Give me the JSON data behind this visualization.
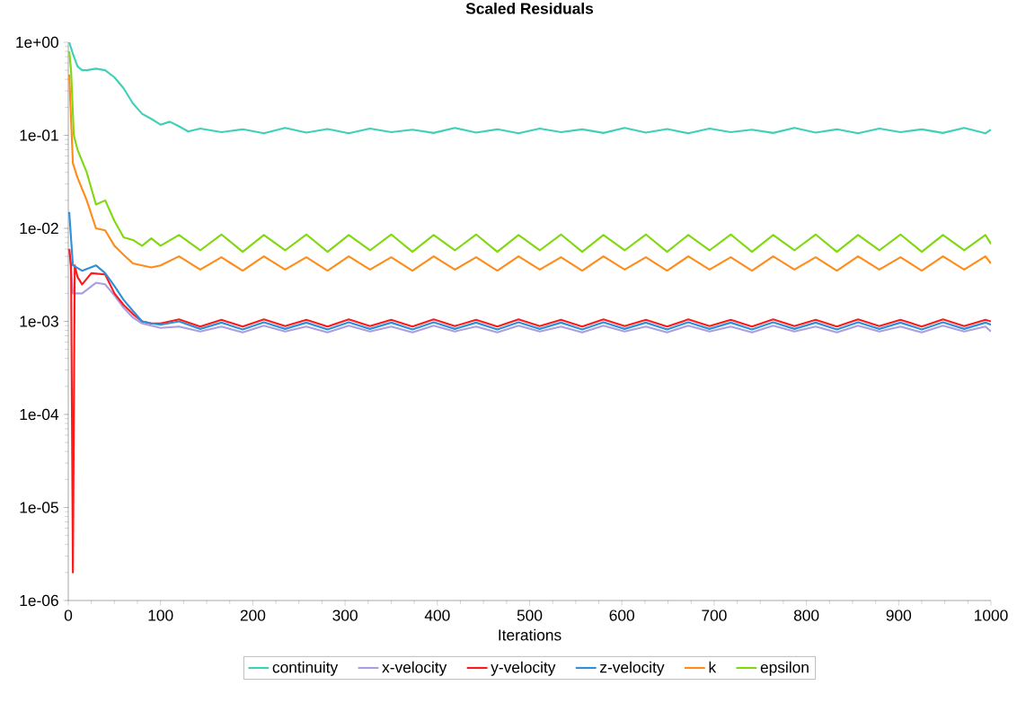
{
  "chart_data": {
    "type": "line",
    "title": "Scaled Residuals",
    "xlabel": "Iterations",
    "log": "y",
    "legend": "bottom",
    "xlim": [
      0,
      1000
    ],
    "ylim": [
      1e-06,
      1
    ],
    "xticks": [
      0,
      100,
      200,
      300,
      400,
      500,
      600,
      700,
      800,
      900,
      1000
    ],
    "yticks": [
      {
        "value": 1e-06,
        "label": "1e-06"
      },
      {
        "value": 1e-05,
        "label": "1e-05"
      },
      {
        "value": 0.0001,
        "label": "1e-04"
      },
      {
        "value": 0.001,
        "label": "1e-03"
      },
      {
        "value": 0.01,
        "label": "1e-02"
      },
      {
        "value": 0.1,
        "label": "1e-01"
      },
      {
        "value": 1,
        "label": "1e+00"
      }
    ],
    "series": [
      {
        "name": "continuity",
        "color": "#40d0b8",
        "x": [
          1,
          5,
          10,
          15,
          20,
          30,
          40,
          50,
          60,
          70,
          80,
          90,
          100,
          110,
          120,
          130,
          143,
          166,
          189,
          212,
          235,
          258,
          281,
          304,
          327,
          350,
          373,
          396,
          419,
          442,
          465,
          488,
          511,
          534,
          557,
          580,
          603,
          626,
          649,
          672,
          695,
          718,
          741,
          764,
          787,
          810,
          833,
          856,
          879,
          902,
          925,
          948,
          971,
          994,
          1000
        ],
        "values": [
          1,
          0.75,
          0.55,
          0.5,
          0.5,
          0.52,
          0.5,
          0.42,
          0.32,
          0.22,
          0.17,
          0.15,
          0.13,
          0.14,
          0.125,
          0.11,
          0.118,
          0.108,
          0.116,
          0.105,
          0.12,
          0.107,
          0.117,
          0.105,
          0.118,
          0.108,
          0.115,
          0.106,
          0.12,
          0.107,
          0.116,
          0.105,
          0.118,
          0.108,
          0.116,
          0.106,
          0.12,
          0.107,
          0.117,
          0.105,
          0.118,
          0.108,
          0.115,
          0.106,
          0.12,
          0.107,
          0.116,
          0.105,
          0.118,
          0.108,
          0.116,
          0.106,
          0.12,
          0.105,
          0.115
        ]
      },
      {
        "name": "x-velocity",
        "color": "#a89ee0",
        "x": [
          1,
          5,
          15,
          30,
          40,
          50,
          60,
          70,
          80,
          90,
          100,
          120,
          143,
          166,
          189,
          212,
          235,
          258,
          281,
          304,
          327,
          350,
          373,
          396,
          419,
          442,
          465,
          488,
          511,
          534,
          557,
          580,
          603,
          626,
          649,
          672,
          695,
          718,
          741,
          764,
          787,
          810,
          833,
          856,
          879,
          902,
          925,
          948,
          971,
          994,
          1000
        ],
        "values": [
          0.006,
          0.002,
          0.002,
          0.0026,
          0.0025,
          0.0019,
          0.0014,
          0.0011,
          0.00095,
          0.0009,
          0.00085,
          0.00088,
          0.00078,
          0.00088,
          0.00076,
          0.0009,
          0.00078,
          0.00088,
          0.00076,
          0.0009,
          0.00078,
          0.00088,
          0.00076,
          0.0009,
          0.00078,
          0.00088,
          0.00076,
          0.0009,
          0.00078,
          0.00088,
          0.00076,
          0.0009,
          0.00078,
          0.00088,
          0.00076,
          0.0009,
          0.00078,
          0.00088,
          0.00076,
          0.0009,
          0.00078,
          0.00088,
          0.00076,
          0.0009,
          0.00078,
          0.00088,
          0.00076,
          0.0009,
          0.00078,
          0.00088,
          0.00078
        ]
      },
      {
        "name": "y-velocity",
        "color": "#ff1a1a",
        "x": [
          1,
          3,
          5,
          7,
          10,
          15,
          25,
          40,
          50,
          60,
          70,
          80,
          90,
          100,
          120,
          143,
          166,
          189,
          212,
          235,
          258,
          281,
          304,
          327,
          350,
          373,
          396,
          419,
          442,
          465,
          488,
          511,
          534,
          557,
          580,
          603,
          626,
          649,
          672,
          695,
          718,
          741,
          764,
          787,
          810,
          833,
          856,
          879,
          902,
          925,
          948,
          971,
          994,
          1000
        ],
        "values": [
          0.006,
          0.004,
          2e-06,
          0.004,
          0.003,
          0.0025,
          0.0033,
          0.0032,
          0.002,
          0.0015,
          0.0012,
          0.001,
          0.00095,
          0.00095,
          0.00105,
          0.00088,
          0.00104,
          0.00088,
          0.00105,
          0.00089,
          0.00104,
          0.00088,
          0.00105,
          0.00089,
          0.00104,
          0.00088,
          0.00105,
          0.00089,
          0.00104,
          0.00088,
          0.00105,
          0.00089,
          0.00104,
          0.00088,
          0.00105,
          0.00089,
          0.00104,
          0.00088,
          0.00105,
          0.00089,
          0.00104,
          0.00088,
          0.00105,
          0.00089,
          0.00104,
          0.00088,
          0.00105,
          0.00089,
          0.00104,
          0.00088,
          0.00105,
          0.00089,
          0.00104,
          0.001
        ]
      },
      {
        "name": "z-velocity",
        "color": "#2f8fd8",
        "x": [
          1,
          5,
          15,
          30,
          40,
          50,
          60,
          70,
          80,
          90,
          100,
          120,
          143,
          166,
          189,
          212,
          235,
          258,
          281,
          304,
          327,
          350,
          373,
          396,
          419,
          442,
          465,
          488,
          511,
          534,
          557,
          580,
          603,
          626,
          649,
          672,
          695,
          718,
          741,
          764,
          787,
          810,
          833,
          856,
          879,
          902,
          925,
          948,
          971,
          994,
          1000
        ],
        "values": [
          0.015,
          0.004,
          0.0035,
          0.004,
          0.0033,
          0.0024,
          0.0017,
          0.0013,
          0.001,
          0.00095,
          0.00092,
          0.001,
          0.00083,
          0.00097,
          0.00082,
          0.00098,
          0.00083,
          0.00097,
          0.00082,
          0.00098,
          0.00083,
          0.00097,
          0.00082,
          0.00098,
          0.00083,
          0.00097,
          0.00082,
          0.00098,
          0.00083,
          0.00097,
          0.00082,
          0.00098,
          0.00083,
          0.00097,
          0.00082,
          0.00098,
          0.00083,
          0.00097,
          0.00082,
          0.00098,
          0.00083,
          0.00097,
          0.00082,
          0.00098,
          0.00083,
          0.00097,
          0.00082,
          0.00098,
          0.00083,
          0.00097,
          0.00092
        ]
      },
      {
        "name": "k",
        "color": "#ff8c1a",
        "x": [
          1,
          5,
          10,
          20,
          30,
          40,
          50,
          60,
          70,
          80,
          90,
          100,
          120,
          143,
          166,
          189,
          212,
          235,
          258,
          281,
          304,
          327,
          350,
          373,
          396,
          419,
          442,
          465,
          488,
          511,
          534,
          557,
          580,
          603,
          626,
          649,
          672,
          695,
          718,
          741,
          764,
          787,
          810,
          833,
          856,
          879,
          902,
          925,
          948,
          971,
          994,
          1000
        ],
        "values": [
          0.45,
          0.05,
          0.035,
          0.02,
          0.01,
          0.0095,
          0.0065,
          0.0052,
          0.0042,
          0.004,
          0.0038,
          0.004,
          0.005,
          0.0036,
          0.0049,
          0.0035,
          0.005,
          0.0036,
          0.0049,
          0.0035,
          0.005,
          0.0036,
          0.0049,
          0.0035,
          0.005,
          0.0036,
          0.0049,
          0.0035,
          0.005,
          0.0036,
          0.0049,
          0.0035,
          0.005,
          0.0036,
          0.0049,
          0.0035,
          0.005,
          0.0036,
          0.0049,
          0.0035,
          0.005,
          0.0036,
          0.0049,
          0.0035,
          0.005,
          0.0036,
          0.0049,
          0.0035,
          0.005,
          0.0036,
          0.005,
          0.0042
        ]
      },
      {
        "name": "epsilon",
        "color": "#80d810",
        "x": [
          1,
          3,
          6,
          10,
          20,
          30,
          40,
          50,
          60,
          70,
          80,
          90,
          100,
          120,
          143,
          166,
          189,
          212,
          235,
          258,
          281,
          304,
          327,
          350,
          373,
          396,
          419,
          442,
          465,
          488,
          511,
          534,
          557,
          580,
          603,
          626,
          649,
          672,
          695,
          718,
          741,
          764,
          787,
          810,
          833,
          856,
          879,
          902,
          925,
          948,
          971,
          994,
          1000
        ],
        "values": [
          0.8,
          0.5,
          0.1,
          0.07,
          0.04,
          0.018,
          0.02,
          0.012,
          0.008,
          0.0075,
          0.0065,
          0.0078,
          0.0065,
          0.0085,
          0.0058,
          0.0086,
          0.0056,
          0.0085,
          0.0058,
          0.0086,
          0.0056,
          0.0085,
          0.0058,
          0.0086,
          0.0056,
          0.0085,
          0.0058,
          0.0086,
          0.0056,
          0.0085,
          0.0058,
          0.0086,
          0.0056,
          0.0085,
          0.0058,
          0.0086,
          0.0056,
          0.0085,
          0.0058,
          0.0086,
          0.0056,
          0.0085,
          0.0058,
          0.0086,
          0.0056,
          0.0085,
          0.0058,
          0.0086,
          0.0056,
          0.0085,
          0.0058,
          0.0085,
          0.0068
        ]
      }
    ]
  }
}
